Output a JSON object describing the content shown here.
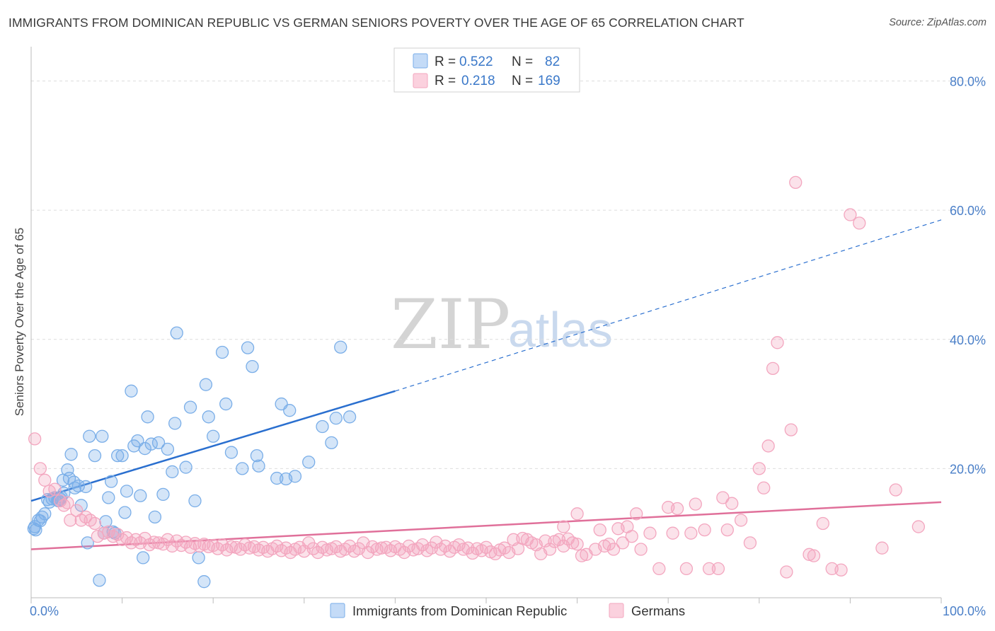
{
  "title": "IMMIGRANTS FROM DOMINICAN REPUBLIC VS GERMAN SENIORS POVERTY OVER THE AGE OF 65 CORRELATION CHART",
  "source": "Source: ZipAtlas.com",
  "watermark": {
    "zip": "ZIP",
    "atlas": "atlas"
  },
  "legend": {
    "rows": [
      {
        "r_label": "R = ",
        "r_value": "0.522",
        "n_label": "N = ",
        "n_value": "82"
      },
      {
        "r_label": "R = ",
        "r_value": "0.218",
        "n_label": "N = ",
        "n_value": "169"
      }
    ]
  },
  "bottom_legend": [
    "Immigrants from Dominican Republic",
    "Germans"
  ],
  "chart_data": {
    "type": "scatter",
    "xlabel": "",
    "ylabel": "Seniors Poverty Over the Age of 65",
    "xlim": [
      0,
      100
    ],
    "ylim": [
      0,
      84
    ],
    "x_tick_labels": [
      {
        "v": 0,
        "t": "0.0%"
      },
      {
        "v": 100,
        "t": "100.0%"
      }
    ],
    "y_tick_labels": [
      {
        "v": 20,
        "t": "20.0%"
      },
      {
        "v": 40,
        "t": "40.0%"
      },
      {
        "v": 60,
        "t": "60.0%"
      },
      {
        "v": 80,
        "t": "80.0%"
      }
    ],
    "colors": {
      "blue": "#7aaee8",
      "blue_line": "#2a6fcf",
      "pink": "#f3a6bf",
      "pink_line": "#e0709a"
    },
    "series": [
      {
        "name": "Immigrants from Dominican Republic",
        "color": "#7aaee8",
        "trend": {
          "x0": 0,
          "y0": 15.0,
          "x1": 40,
          "y1": 32.0,
          "dash_x1": 100,
          "dash_y1": 58.5
        },
        "points": [
          [
            0.4,
            11.0
          ],
          [
            0.5,
            10.5
          ],
          [
            0.8,
            12.0
          ],
          [
            1.2,
            12.5
          ],
          [
            1.5,
            13.0
          ],
          [
            1.8,
            15.2
          ],
          [
            2.0,
            14.8
          ],
          [
            2.3,
            15.3
          ],
          [
            2.6,
            15.5
          ],
          [
            3.0,
            15.0
          ],
          [
            3.3,
            15.6
          ],
          [
            3.6,
            16.2
          ],
          [
            3.5,
            18.2
          ],
          [
            4.2,
            18.5
          ],
          [
            4.0,
            19.8
          ],
          [
            4.4,
            22.2
          ],
          [
            4.7,
            17.9
          ],
          [
            5.2,
            17.3
          ],
          [
            5.5,
            14.3
          ],
          [
            6.0,
            17.2
          ],
          [
            6.4,
            25.0
          ],
          [
            7.0,
            22.0
          ],
          [
            7.8,
            25.0
          ],
          [
            8.2,
            11.8
          ],
          [
            8.5,
            15.5
          ],
          [
            8.8,
            18.0
          ],
          [
            9.2,
            10.0
          ],
          [
            9.5,
            22.0
          ],
          [
            10.3,
            13.2
          ],
          [
            10.5,
            16.5
          ],
          [
            11.0,
            32.0
          ],
          [
            10.0,
            22.0
          ],
          [
            11.3,
            23.5
          ],
          [
            11.7,
            24.3
          ],
          [
            12.0,
            15.8
          ],
          [
            12.3,
            6.2
          ],
          [
            12.5,
            23.1
          ],
          [
            12.8,
            28.0
          ],
          [
            13.2,
            23.8
          ],
          [
            13.6,
            12.5
          ],
          [
            14.0,
            24.0
          ],
          [
            14.5,
            16.0
          ],
          [
            15.0,
            23.0
          ],
          [
            15.5,
            19.5
          ],
          [
            15.8,
            27.0
          ],
          [
            16.0,
            41.0
          ],
          [
            17.0,
            20.2
          ],
          [
            17.5,
            29.5
          ],
          [
            18.0,
            15.0
          ],
          [
            18.4,
            6.2
          ],
          [
            19.0,
            2.5
          ],
          [
            19.2,
            33.0
          ],
          [
            19.5,
            28.0
          ],
          [
            20.0,
            25.0
          ],
          [
            21.0,
            38.0
          ],
          [
            21.4,
            30.0
          ],
          [
            22.0,
            22.5
          ],
          [
            23.2,
            20.0
          ],
          [
            23.8,
            38.7
          ],
          [
            24.3,
            35.8
          ],
          [
            24.8,
            22.0
          ],
          [
            25.0,
            20.4
          ],
          [
            27.0,
            18.5
          ],
          [
            27.5,
            30.0
          ],
          [
            28.0,
            18.4
          ],
          [
            28.4,
            29.0
          ],
          [
            29.0,
            18.8
          ],
          [
            30.5,
            21.0
          ],
          [
            32.0,
            26.5
          ],
          [
            33.0,
            24.0
          ],
          [
            33.5,
            27.8
          ],
          [
            34.0,
            38.8
          ],
          [
            35.0,
            28.0
          ],
          [
            7.5,
            2.7
          ],
          [
            8.0,
            10.0
          ],
          [
            9.0,
            10.2
          ],
          [
            4.8,
            17.0
          ],
          [
            2.9,
            15.1
          ],
          [
            1.0,
            11.9
          ],
          [
            0.3,
            10.7
          ],
          [
            3.2,
            15.3
          ],
          [
            6.2,
            8.5
          ]
        ]
      },
      {
        "name": "Germans",
        "color": "#f3a6bf",
        "trend": {
          "x0": 0,
          "y0": 7.5,
          "x1": 100,
          "y1": 14.8
        },
        "points": [
          [
            0.4,
            24.6
          ],
          [
            1.0,
            20.0
          ],
          [
            1.5,
            18.2
          ],
          [
            2.0,
            16.5
          ],
          [
            2.6,
            16.8
          ],
          [
            3.2,
            15.0
          ],
          [
            3.6,
            14.3
          ],
          [
            4.0,
            14.7
          ],
          [
            4.3,
            12.0
          ],
          [
            5.0,
            13.5
          ],
          [
            5.5,
            12.0
          ],
          [
            6.0,
            12.5
          ],
          [
            6.5,
            12.0
          ],
          [
            7.0,
            11.5
          ],
          [
            7.3,
            9.5
          ],
          [
            8.0,
            10.0
          ],
          [
            8.5,
            10.2
          ],
          [
            9.0,
            9.5
          ],
          [
            9.5,
            9.8
          ],
          [
            10.0,
            9.0
          ],
          [
            10.5,
            9.3
          ],
          [
            11.0,
            8.5
          ],
          [
            11.5,
            9.0
          ],
          [
            12.0,
            8.5
          ],
          [
            12.5,
            9.2
          ],
          [
            13.0,
            8.2
          ],
          [
            13.5,
            8.6
          ],
          [
            14.0,
            8.5
          ],
          [
            14.5,
            8.3
          ],
          [
            15.0,
            9.0
          ],
          [
            15.5,
            8.0
          ],
          [
            16.0,
            8.8
          ],
          [
            16.5,
            8.1
          ],
          [
            17.0,
            8.6
          ],
          [
            17.5,
            7.8
          ],
          [
            18.0,
            8.4
          ],
          [
            18.5,
            8.0
          ],
          [
            19.0,
            8.3
          ],
          [
            19.5,
            7.9
          ],
          [
            20.0,
            8.1
          ],
          [
            20.5,
            7.6
          ],
          [
            21.0,
            8.2
          ],
          [
            21.5,
            7.4
          ],
          [
            22.0,
            7.9
          ],
          [
            22.5,
            7.8
          ],
          [
            23.0,
            7.5
          ],
          [
            23.5,
            8.2
          ],
          [
            24.0,
            7.7
          ],
          [
            24.5,
            7.9
          ],
          [
            25.0,
            7.4
          ],
          [
            25.5,
            7.8
          ],
          [
            26.0,
            7.2
          ],
          [
            26.5,
            7.6
          ],
          [
            27.0,
            8.0
          ],
          [
            27.5,
            7.3
          ],
          [
            28.0,
            7.7
          ],
          [
            28.5,
            7.0
          ],
          [
            29.0,
            7.5
          ],
          [
            29.5,
            7.8
          ],
          [
            30.0,
            7.2
          ],
          [
            30.5,
            8.5
          ],
          [
            31.0,
            7.6
          ],
          [
            31.5,
            7.0
          ],
          [
            32.0,
            7.8
          ],
          [
            32.5,
            7.4
          ],
          [
            33.0,
            7.6
          ],
          [
            33.5,
            7.9
          ],
          [
            34.0,
            7.2
          ],
          [
            34.5,
            7.5
          ],
          [
            35.0,
            8.0
          ],
          [
            35.5,
            7.2
          ],
          [
            36.0,
            7.6
          ],
          [
            36.5,
            8.5
          ],
          [
            37.0,
            7.0
          ],
          [
            37.5,
            7.9
          ],
          [
            38.0,
            7.5
          ],
          [
            38.5,
            7.7
          ],
          [
            39.0,
            7.8
          ],
          [
            39.5,
            7.3
          ],
          [
            40.0,
            7.9
          ],
          [
            40.5,
            7.5
          ],
          [
            41.0,
            7.0
          ],
          [
            41.5,
            8.0
          ],
          [
            42.0,
            7.4
          ],
          [
            42.5,
            7.6
          ],
          [
            43.0,
            8.2
          ],
          [
            43.5,
            7.3
          ],
          [
            44.0,
            7.7
          ],
          [
            44.5,
            8.6
          ],
          [
            45.0,
            7.5
          ],
          [
            45.5,
            8.0
          ],
          [
            46.0,
            7.2
          ],
          [
            46.5,
            7.8
          ],
          [
            47.0,
            8.2
          ],
          [
            47.5,
            7.5
          ],
          [
            48.0,
            7.7
          ],
          [
            48.5,
            6.9
          ],
          [
            49.0,
            7.6
          ],
          [
            49.5,
            7.3
          ],
          [
            50.0,
            7.8
          ],
          [
            50.5,
            7.1
          ],
          [
            51.0,
            6.8
          ],
          [
            51.5,
            7.4
          ],
          [
            52.0,
            7.7
          ],
          [
            52.5,
            7.0
          ],
          [
            53.0,
            9.0
          ],
          [
            53.5,
            7.6
          ],
          [
            54.0,
            9.2
          ],
          [
            54.5,
            9.0
          ],
          [
            55.0,
            8.5
          ],
          [
            55.5,
            8.2
          ],
          [
            56.0,
            6.8
          ],
          [
            56.5,
            8.8
          ],
          [
            57.0,
            7.5
          ],
          [
            57.5,
            8.7
          ],
          [
            58.0,
            9.0
          ],
          [
            58.5,
            8.0
          ],
          [
            59.0,
            9.1
          ],
          [
            59.5,
            8.5
          ],
          [
            60.0,
            8.3
          ],
          [
            60.5,
            6.5
          ],
          [
            61.0,
            6.7
          ],
          [
            62.0,
            7.5
          ],
          [
            62.5,
            10.5
          ],
          [
            63.0,
            8.0
          ],
          [
            63.5,
            8.3
          ],
          [
            64.0,
            7.5
          ],
          [
            64.5,
            10.7
          ],
          [
            65.0,
            8.5
          ],
          [
            65.5,
            11.0
          ],
          [
            66.0,
            9.5
          ],
          [
            67.0,
            7.5
          ],
          [
            68.0,
            10.0
          ],
          [
            69.0,
            4.5
          ],
          [
            70.0,
            14.0
          ],
          [
            70.5,
            10.0
          ],
          [
            71.0,
            13.8
          ],
          [
            72.0,
            4.5
          ],
          [
            72.5,
            10.0
          ],
          [
            73.0,
            14.5
          ],
          [
            74.0,
            10.5
          ],
          [
            75.5,
            4.5
          ],
          [
            76.0,
            15.5
          ],
          [
            76.5,
            10.5
          ],
          [
            77.0,
            14.6
          ],
          [
            78.0,
            12.0
          ],
          [
            79.0,
            8.5
          ],
          [
            80.0,
            20.0
          ],
          [
            80.5,
            17.0
          ],
          [
            81.0,
            23.5
          ],
          [
            81.5,
            35.5
          ],
          [
            82.0,
            39.5
          ],
          [
            83.0,
            4.0
          ],
          [
            83.5,
            26.0
          ],
          [
            84.0,
            64.3
          ],
          [
            85.5,
            6.7
          ],
          [
            86.0,
            6.5
          ],
          [
            87.0,
            11.5
          ],
          [
            88.0,
            4.5
          ],
          [
            89.0,
            4.3
          ],
          [
            90.0,
            59.3
          ],
          [
            91.0,
            58.0
          ],
          [
            93.5,
            7.7
          ],
          [
            95.0,
            16.7
          ],
          [
            97.5,
            11.0
          ],
          [
            74.5,
            4.5
          ],
          [
            66.5,
            13.0
          ],
          [
            60.0,
            13.0
          ],
          [
            58.5,
            11.0
          ]
        ]
      }
    ]
  }
}
